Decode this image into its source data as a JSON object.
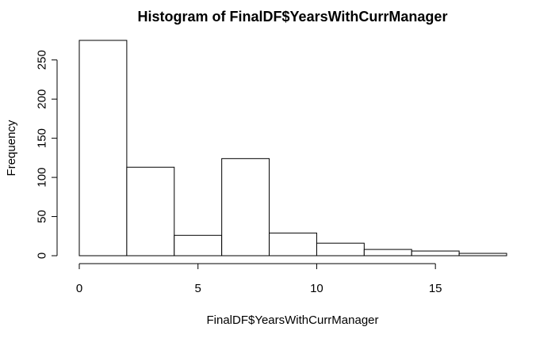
{
  "chart_data": {
    "type": "bar",
    "title": "Histogram of FinalDF$YearsWithCurrManager",
    "xlabel": "FinalDF$YearsWithCurrManager",
    "ylabel": "Frequency",
    "bins": [
      {
        "from": 0,
        "to": 2,
        "count": 275
      },
      {
        "from": 2,
        "to": 4,
        "count": 113
      },
      {
        "from": 4,
        "to": 6,
        "count": 26
      },
      {
        "from": 6,
        "to": 8,
        "count": 124
      },
      {
        "from": 8,
        "to": 10,
        "count": 29
      },
      {
        "from": 10,
        "to": 12,
        "count": 16
      },
      {
        "from": 12,
        "to": 14,
        "count": 8
      },
      {
        "from": 14,
        "to": 16,
        "count": 6
      },
      {
        "from": 16,
        "to": 18,
        "count": 3
      }
    ],
    "xticks": [
      0,
      5,
      10,
      15
    ],
    "xtick_labels": [
      "0",
      "5",
      "10",
      "15"
    ],
    "yticks": [
      0,
      50,
      100,
      150,
      200,
      250
    ],
    "ytick_labels": [
      "0",
      "50",
      "100",
      "150",
      "200",
      "250"
    ],
    "xlim": [
      0,
      18
    ],
    "ylim": [
      0,
      275
    ],
    "grid": false,
    "legend": "none"
  }
}
